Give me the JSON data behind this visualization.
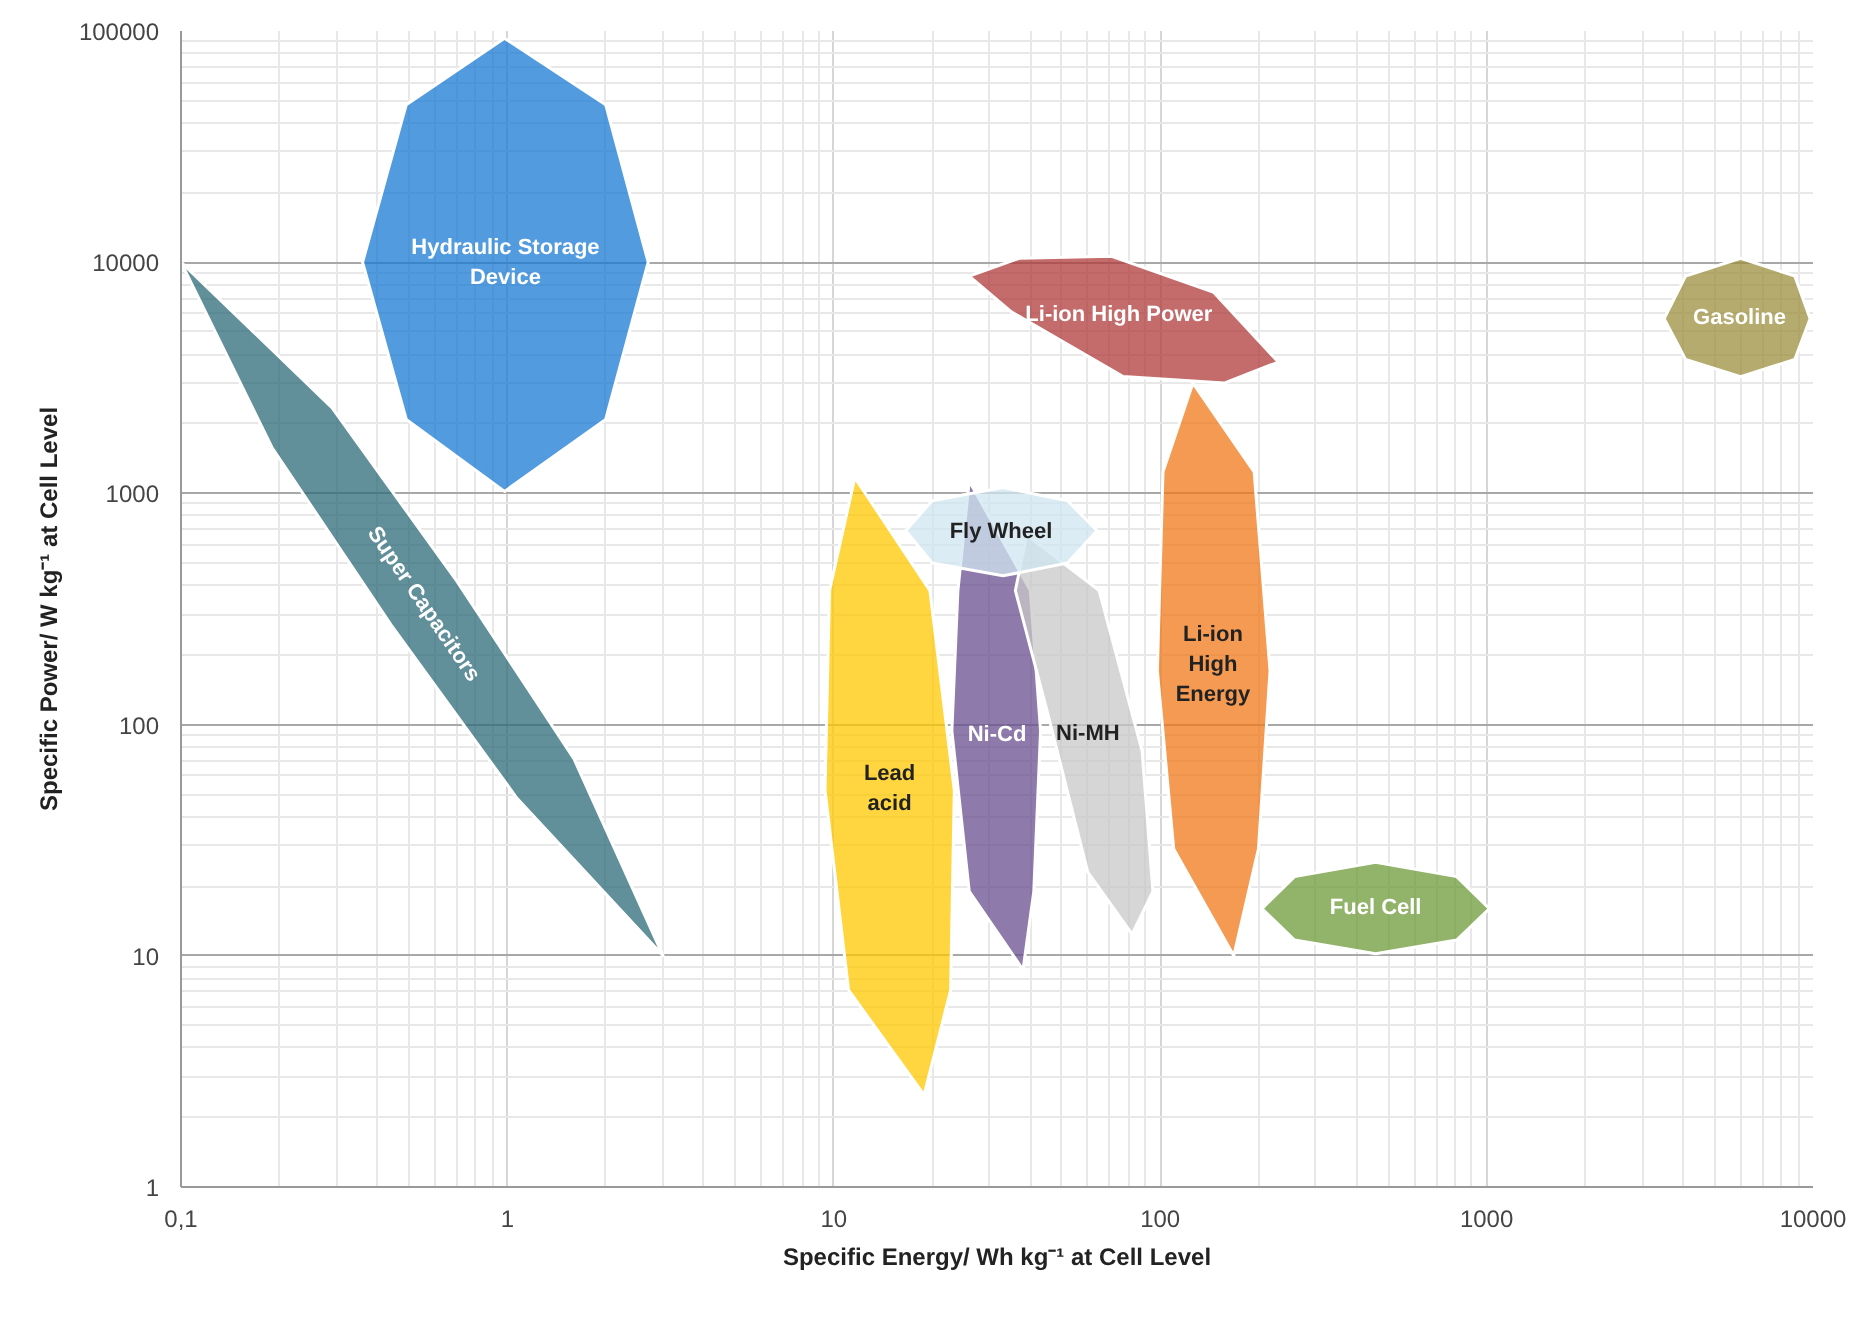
{
  "chart_data": {
    "type": "area",
    "xlabel": "Specific Energy/ Wh kg⁻¹ at Cell Level",
    "ylabel": "Specific Power/ W kg⁻¹ at Cell Level",
    "log": "xy",
    "grid": true,
    "legend": false,
    "xlim": [
      0.1,
      10000
    ],
    "ylim": [
      1,
      100000
    ],
    "xticks": [
      {
        "value": 0.1,
        "label": "0,1"
      },
      1,
      10,
      100,
      1000,
      10000
    ],
    "yticks": [
      1,
      10,
      100,
      1000,
      10000,
      100000
    ],
    "series": [
      {
        "name": "Hydraulic Storage\nDevice",
        "color": "#1a7ad4",
        "x": [
          2.7,
          2.0,
          0.98,
          0.49,
          0.36,
          0.49,
          0.98,
          2.0
        ],
        "values": [
          10000,
          48000,
          93000,
          48000,
          10000,
          2090,
          1020,
          2090
        ]
      },
      {
        "name": "Super Capacitors",
        "color": "#2e6b78",
        "x": [
          0.1,
          0.29,
          0.7,
          1.6,
          3,
          1.07,
          0.44,
          0.19
        ],
        "values": [
          10000,
          2350,
          417,
          71,
          10,
          48,
          270,
          1580
        ]
      },
      {
        "name": "Li-ion High Power",
        "color": "#b03a3a",
        "x": [
          26,
          37,
          71,
          146,
          230,
          157,
          77,
          35
        ],
        "values": [
          8700,
          10400,
          10600,
          7400,
          3700,
          3000,
          3200,
          6100
        ]
      },
      {
        "name": "Gasoline",
        "color": "#9c8f3e",
        "x": [
          9800,
          8800,
          6000,
          4070,
          3500,
          4070,
          6000,
          8800
        ],
        "values": [
          5700,
          8700,
          10400,
          8700,
          5700,
          3800,
          3200,
          3800
        ]
      },
      {
        "name": "Lead\nacid",
        "color": "#ffc800",
        "x": [
          11.6,
          19.7,
          23.4,
          22.8,
          18.9,
          11.1,
          9.4,
          9.7
        ],
        "values": [
          1170,
          380,
          52,
          7.1,
          2.5,
          7.1,
          52,
          380
        ]
      },
      {
        "name": "Ni-Cd",
        "color": "#6a4f8f",
        "x": [
          26,
          40,
          43,
          41,
          38,
          26,
          23,
          24
        ],
        "values": [
          1130,
          380,
          94,
          19,
          8.7,
          19,
          94,
          380
        ]
      },
      {
        "name": "Ni-MH",
        "color": "#c8c8c8",
        "x": [
          39,
          65,
          88,
          95,
          82,
          60,
          45,
          36
        ],
        "values": [
          660,
          380,
          77,
          19,
          12.4,
          23,
          115,
          380
        ]
      },
      {
        "name": "Li-ion\nHigh\nEnergy",
        "color": "#f07818",
        "x": [
          126,
          194,
          217,
          200,
          168,
          110,
          98,
          102
        ],
        "values": [
          3000,
          1240,
          171,
          29,
          10,
          29,
          171,
          1240
        ]
      },
      {
        "name": "Fuel Cell",
        "color": "#6e9a38",
        "x": [
          1020,
          810,
          457,
          258,
          205,
          258,
          457,
          810
        ],
        "values": [
          16,
          22,
          25.4,
          22,
          16,
          11.7,
          10.2,
          11.7
        ]
      },
      {
        "name": "Fly Wheel",
        "color": "#d0e6f0",
        "x": [
          64,
          52,
          33,
          20,
          16.6,
          20,
          33,
          52
        ],
        "values": [
          690,
          930,
          1060,
          930,
          690,
          500,
          440,
          500
        ]
      }
    ]
  }
}
